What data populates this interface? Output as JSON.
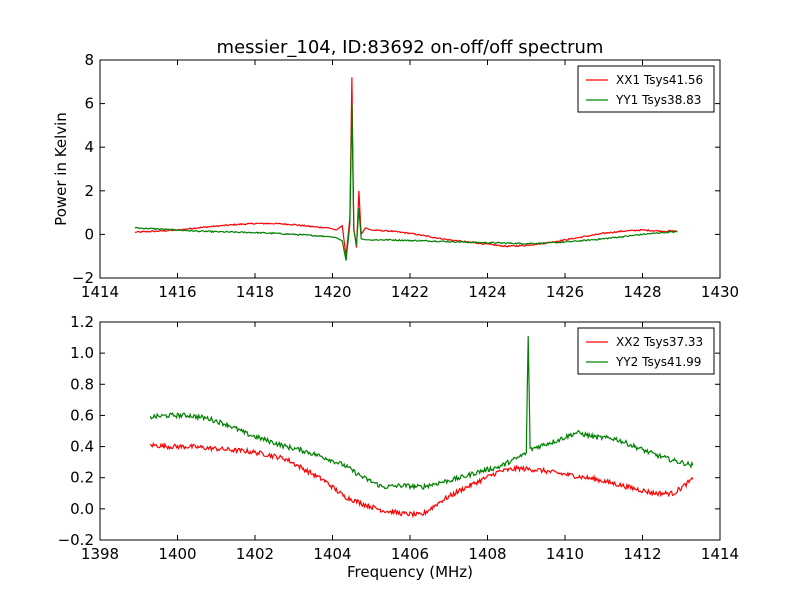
{
  "figure": {
    "title": "messier_104, ID:83692 on-off/off spectrum",
    "background": "#ffffff"
  },
  "chart_data": [
    {
      "type": "line",
      "name": "top",
      "ylabel": "Power in Kelvin",
      "xlabel": "",
      "xlim": [
        1414,
        1430
      ],
      "ylim": [
        -2,
        8
      ],
      "xticks": [
        1414,
        1416,
        1418,
        1420,
        1422,
        1424,
        1426,
        1428,
        1430
      ],
      "yticks": [
        -2,
        0,
        2,
        4,
        6,
        8
      ],
      "xtick_labels": [
        "1414",
        "1416",
        "1418",
        "1420",
        "1422",
        "1424",
        "1426",
        "1428",
        "1430"
      ],
      "ytick_labels": [
        "−2",
        "0",
        "2",
        "4",
        "6",
        "8"
      ],
      "legend_position": "top-right",
      "series": [
        {
          "name": "XX1 Tsys41.56",
          "color": "#ff0000",
          "x": [
            1414.9,
            1415.5,
            1416.0,
            1416.5,
            1417.0,
            1417.5,
            1418.0,
            1418.5,
            1419.0,
            1419.5,
            1419.9,
            1420.1,
            1420.25,
            1420.35,
            1420.45,
            1420.5,
            1420.55,
            1420.62,
            1420.68,
            1420.74,
            1420.85,
            1421.0,
            1421.5,
            1422.0,
            1422.5,
            1423.0,
            1423.5,
            1424.0,
            1424.5,
            1425.0,
            1425.5,
            1426.0,
            1426.5,
            1427.0,
            1427.5,
            1428.0,
            1428.5,
            1428.9
          ],
          "y": [
            0.1,
            0.15,
            0.2,
            0.3,
            0.38,
            0.45,
            0.5,
            0.5,
            0.45,
            0.35,
            0.3,
            0.2,
            0.4,
            -1.0,
            0.8,
            7.2,
            0.3,
            -0.6,
            2.0,
            0.0,
            0.3,
            0.2,
            0.15,
            0.05,
            -0.1,
            -0.25,
            -0.35,
            -0.45,
            -0.55,
            -0.5,
            -0.4,
            -0.25,
            -0.1,
            0.05,
            0.15,
            0.2,
            0.15,
            0.15
          ]
        },
        {
          "name": "YY1 Tsys38.83",
          "color": "#008000",
          "x": [
            1414.9,
            1415.5,
            1416.0,
            1416.5,
            1417.0,
            1417.5,
            1418.0,
            1418.5,
            1419.0,
            1419.5,
            1419.9,
            1420.1,
            1420.25,
            1420.35,
            1420.45,
            1420.5,
            1420.55,
            1420.62,
            1420.68,
            1420.74,
            1420.85,
            1421.0,
            1421.5,
            1422.0,
            1422.5,
            1423.0,
            1423.5,
            1424.0,
            1424.5,
            1425.0,
            1425.5,
            1426.0,
            1426.5,
            1427.0,
            1427.5,
            1428.0,
            1428.5,
            1428.9
          ],
          "y": [
            0.3,
            0.25,
            0.2,
            0.15,
            0.12,
            0.1,
            0.08,
            0.05,
            0.0,
            -0.05,
            -0.1,
            -0.15,
            -0.3,
            -1.2,
            0.5,
            6.0,
            0.2,
            -0.5,
            1.2,
            -0.2,
            -0.25,
            -0.25,
            -0.25,
            -0.28,
            -0.3,
            -0.33,
            -0.36,
            -0.38,
            -0.4,
            -0.42,
            -0.4,
            -0.35,
            -0.28,
            -0.2,
            -0.1,
            0.0,
            0.08,
            0.12
          ]
        }
      ]
    },
    {
      "type": "line",
      "name": "bottom",
      "xlabel": "Frequency (MHz)",
      "ylabel": "",
      "xlim": [
        1398,
        1414
      ],
      "ylim": [
        -0.2,
        1.2
      ],
      "xticks": [
        1398,
        1400,
        1402,
        1404,
        1406,
        1408,
        1410,
        1412,
        1414
      ],
      "yticks": [
        -0.2,
        0.0,
        0.2,
        0.4,
        0.6,
        0.8,
        1.0,
        1.2
      ],
      "xtick_labels": [
        "1398",
        "1400",
        "1402",
        "1404",
        "1406",
        "1408",
        "1410",
        "1412",
        "1414"
      ],
      "ytick_labels": [
        "−0.2",
        "0.0",
        "0.2",
        "0.4",
        "0.6",
        "0.8",
        "1.0",
        "1.2"
      ],
      "legend_position": "top-right",
      "series": [
        {
          "name": "XX2 Tsys37.33",
          "color": "#ff0000",
          "x": [
            1399.3,
            1399.8,
            1400.3,
            1400.8,
            1401.3,
            1401.8,
            1402.3,
            1402.8,
            1403.3,
            1403.8,
            1404.3,
            1404.8,
            1405.3,
            1405.8,
            1406.3,
            1406.8,
            1407.3,
            1407.8,
            1408.3,
            1408.8,
            1409.3,
            1409.8,
            1410.3,
            1410.8,
            1411.3,
            1411.8,
            1412.3,
            1412.8,
            1413.3
          ],
          "y": [
            0.41,
            0.4,
            0.4,
            0.39,
            0.38,
            0.37,
            0.35,
            0.32,
            0.25,
            0.18,
            0.08,
            0.03,
            -0.01,
            -0.03,
            -0.04,
            0.05,
            0.12,
            0.18,
            0.24,
            0.26,
            0.25,
            0.23,
            0.21,
            0.19,
            0.16,
            0.13,
            0.1,
            0.1,
            0.19
          ]
        },
        {
          "name": "YY2 Tsys41.99",
          "color": "#008000",
          "x": [
            1399.3,
            1399.8,
            1400.3,
            1400.8,
            1401.3,
            1401.8,
            1402.3,
            1402.8,
            1403.3,
            1403.8,
            1404.3,
            1404.8,
            1405.3,
            1405.8,
            1406.3,
            1406.8,
            1407.3,
            1407.8,
            1408.3,
            1408.8,
            1409.0,
            1409.05,
            1409.1,
            1409.3,
            1409.8,
            1410.3,
            1410.8,
            1411.3,
            1411.8,
            1412.3,
            1412.8,
            1413.3
          ],
          "y": [
            0.59,
            0.6,
            0.6,
            0.58,
            0.54,
            0.48,
            0.44,
            0.4,
            0.37,
            0.33,
            0.28,
            0.2,
            0.14,
            0.15,
            0.14,
            0.17,
            0.2,
            0.24,
            0.27,
            0.33,
            0.36,
            1.11,
            0.38,
            0.4,
            0.44,
            0.49,
            0.46,
            0.45,
            0.4,
            0.35,
            0.31,
            0.28
          ]
        }
      ]
    }
  ]
}
